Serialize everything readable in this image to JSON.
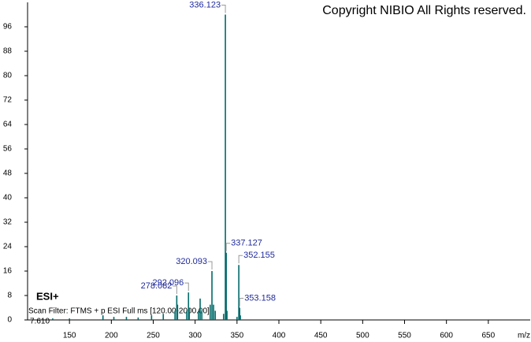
{
  "chart_data": {
    "type": "spectrum",
    "title": "Copyright NIBIO All Rights reserved.",
    "ionization": "ESI+",
    "scan_filter": "Scan Filter: FTMS + p ESI Full ms [120.00-2000.00]",
    "normalization": "7.610",
    "x_label": "m/z",
    "color": "#006a6a",
    "label_color": "#1f2a9a",
    "xlim": [
      100,
      700
    ],
    "xticks": [
      150,
      200,
      250,
      300,
      350,
      400,
      450,
      500,
      550,
      600,
      650
    ],
    "ylim": [
      0,
      104
    ],
    "yticks": [
      0,
      8,
      16,
      24,
      32,
      40,
      48,
      56,
      64,
      72,
      80,
      88,
      96
    ],
    "labeled_peaks": {
      "x": [
        336.123,
        337.127,
        352.155,
        353.158,
        320.093,
        292.096,
        278.082
      ],
      "values": [
        100,
        22,
        18,
        4,
        16,
        9,
        8
      ]
    },
    "peaks": {
      "x": [
        130,
        150,
        190,
        203,
        218,
        232,
        248,
        262,
        276,
        279,
        290,
        293,
        304,
        306,
        308,
        318,
        322,
        324,
        334,
        338,
        350,
        354
      ],
      "values": [
        0.5,
        0.5,
        1.5,
        1,
        1,
        0.8,
        1.5,
        2,
        3,
        5,
        3,
        4,
        3,
        7,
        3,
        5,
        5,
        3,
        2,
        3,
        1,
        1.5
      ]
    }
  }
}
